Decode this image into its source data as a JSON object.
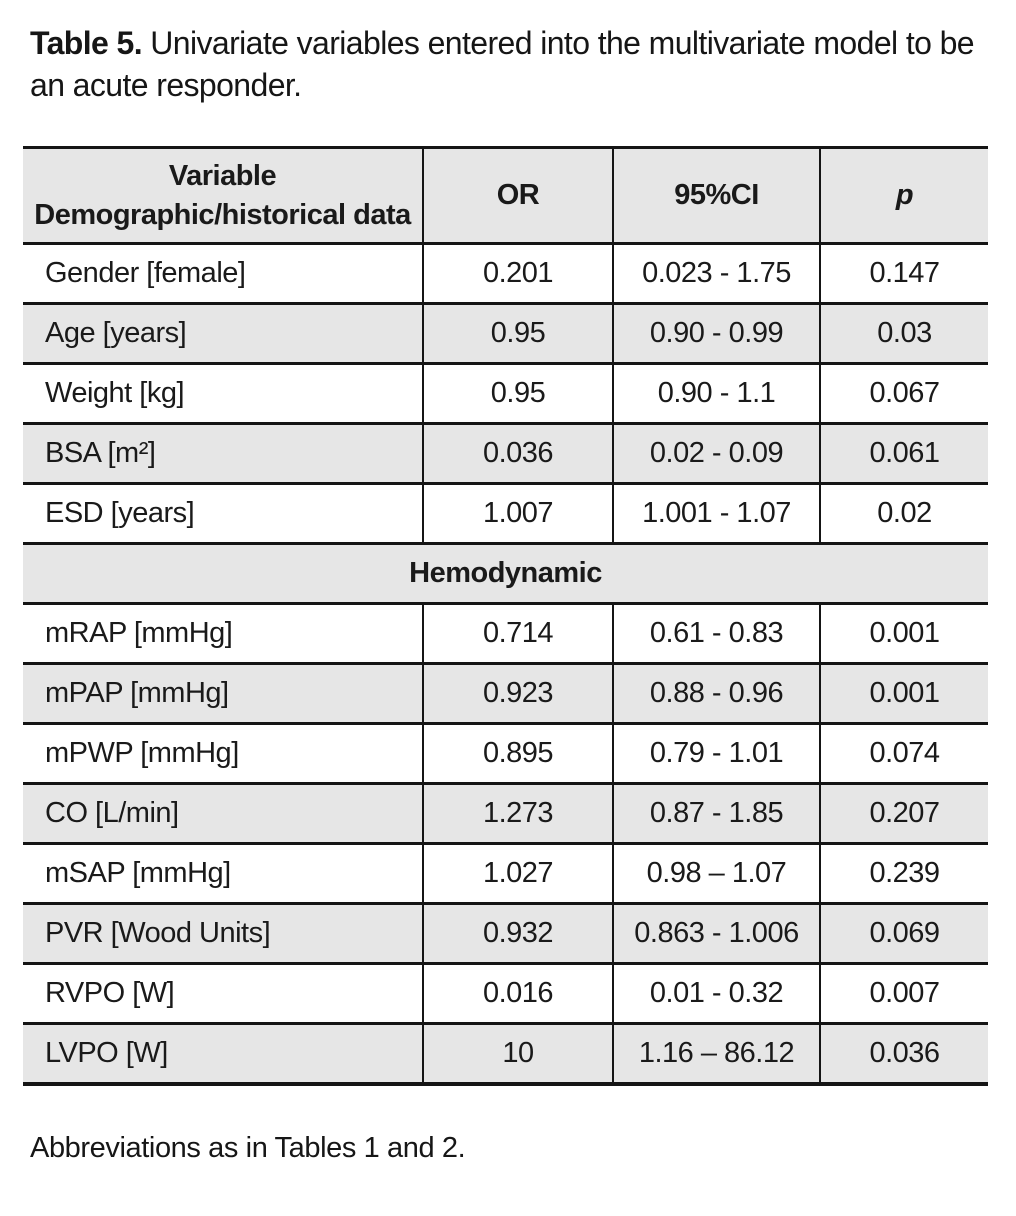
{
  "title": {
    "label": "Table 5.",
    "text": "Univariate variables entered into the multivariate model to be an acute responder."
  },
  "table": {
    "header": {
      "variable_line1": "Variable",
      "variable_line2": "Demographic/historical data",
      "or": "OR",
      "ci": "95%CI",
      "p": "p"
    },
    "rows": [
      {
        "variable": "Gender [female]",
        "or": "0.201",
        "ci": "0.023 - 1.75",
        "p": "0.147"
      },
      {
        "variable": "Age [years]",
        "or": "0.95",
        "ci": "0.90 - 0.99",
        "p": "0.03"
      },
      {
        "variable": "Weight [kg]",
        "or": "0.95",
        "ci": "0.90 - 1.1",
        "p": "0.067"
      },
      {
        "variable": "BSA [m²]",
        "or": "0.036",
        "ci": "0.02 - 0.09",
        "p": "0.061"
      },
      {
        "variable": "ESD [years]",
        "or": "1.007",
        "ci": "1.001 - 1.07",
        "p": "0.02"
      },
      {
        "type": "section",
        "label": "Hemodynamic"
      },
      {
        "variable": "mRAP [mmHg]",
        "or": "0.714",
        "ci": "0.61 - 0.83",
        "p": "0.001"
      },
      {
        "variable": "mPAP [mmHg]",
        "or": "0.923",
        "ci": "0.88 - 0.96",
        "p": "0.001"
      },
      {
        "variable": "mPWP [mmHg]",
        "or": "0.895",
        "ci": "0.79 - 1.01",
        "p": "0.074"
      },
      {
        "variable": "CO [L/min]",
        "or": "1.273",
        "ci": "0.87 - 1.85",
        "p": "0.207"
      },
      {
        "variable": "mSAP [mmHg]",
        "or": "1.027",
        "ci": "0.98 – 1.07",
        "p": "0.239"
      },
      {
        "variable": "PVR [Wood Units]",
        "or": "0.932",
        "ci": "0.863 - 1.006",
        "p": "0.069"
      },
      {
        "variable": "RVPO [W]",
        "or": "0.016",
        "ci": "0.01 - 0.32",
        "p": "0.007"
      },
      {
        "variable": "LVPO [W]",
        "or": "10",
        "ci": "1.16 – 86.12",
        "p": "0.036"
      }
    ]
  },
  "footnote": "Abbreviations as in Tables 1 and 2.",
  "colors": {
    "row_shade": "#e6e6e6",
    "border": "#151515",
    "text": "#1a1a1a",
    "background": "#ffffff"
  }
}
